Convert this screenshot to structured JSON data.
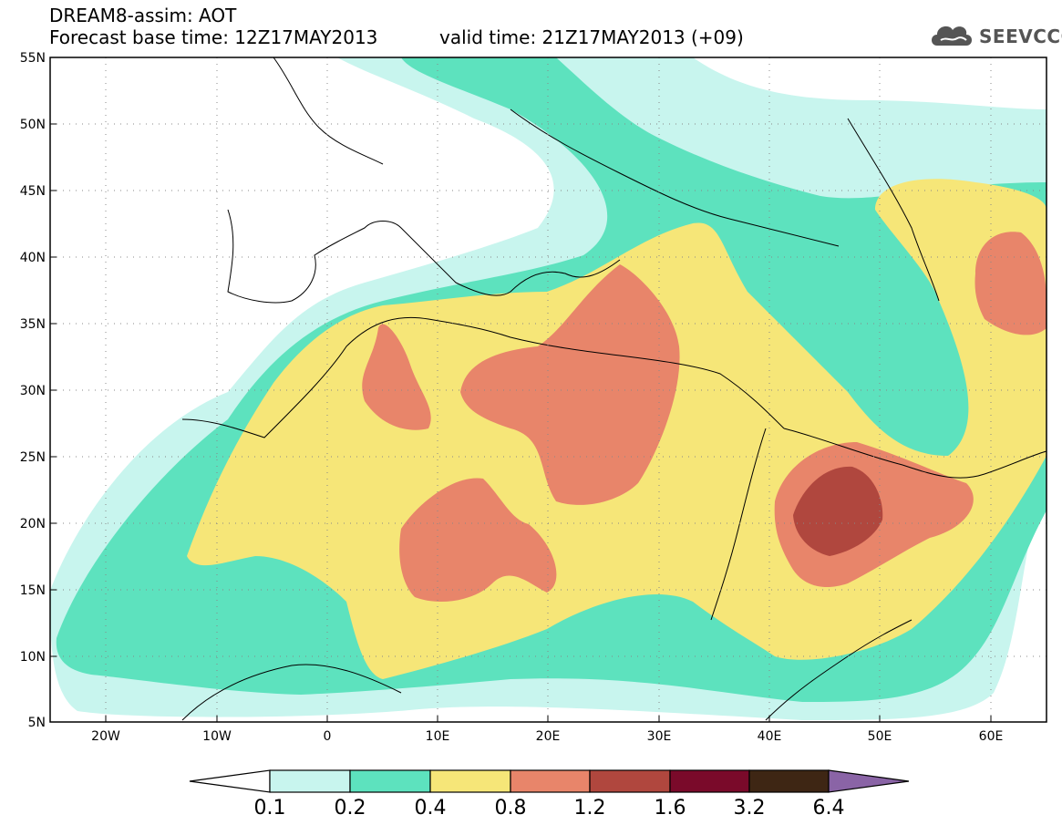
{
  "header": {
    "title_line1": "DREAM8-assim: AOT",
    "title_line2": "Forecast base time: 12Z17MAY2013",
    "valid_time": "valid time: 21Z17MAY2013 (+09)",
    "logo_text": "SEEVCCC",
    "logo_icon": "cloud-logo-icon"
  },
  "axes": {
    "lat_labels": [
      "55N",
      "50N",
      "45N",
      "40N",
      "35N",
      "30N",
      "25N",
      "20N",
      "15N",
      "10N",
      "5N"
    ],
    "lon_labels": [
      "20W",
      "10W",
      "0",
      "10E",
      "20E",
      "30E",
      "40E",
      "50E",
      "60E"
    ]
  },
  "colorbar": {
    "labels": [
      "0.1",
      "0.2",
      "0.4",
      "0.8",
      "1.2",
      "1.6",
      "3.2",
      "6.4"
    ],
    "colors": [
      "#ffffff",
      "#c8f5ee",
      "#5de2be",
      "#f6e678",
      "#e8856a",
      "#b0473e",
      "#7a0a2a",
      "#3e2614",
      "#8a64a6"
    ]
  },
  "chart_data": {
    "type": "heatmap",
    "title": "DREAM8-assim: AOT",
    "subtitle": "Forecast base time: 12Z17MAY2013 valid time: 21Z17MAY2013 (+09)",
    "x_range": [
      -25,
      65
    ],
    "y_range": [
      5,
      55
    ],
    "levels": [
      0.1,
      0.2,
      0.4,
      0.8,
      1.2,
      1.6,
      3.2,
      6.4
    ],
    "grid": true
  }
}
